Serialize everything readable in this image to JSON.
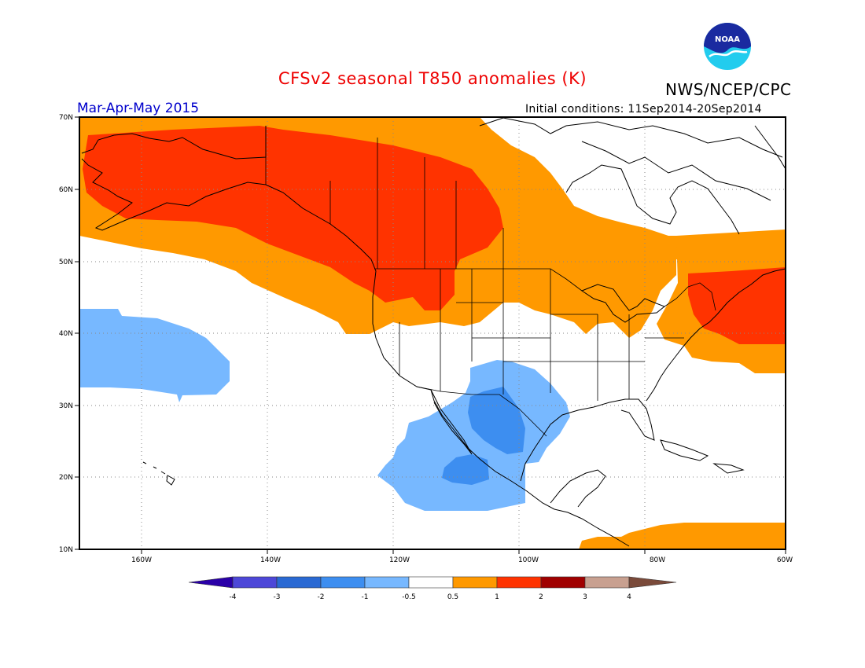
{
  "title": "CFSv2 seasonal T850 anomalies (K)",
  "agency": "NWS/NCEP/CPC",
  "logo_text": "NOAA",
  "season": "Mar-Apr-May 2015",
  "initial_conditions": "Initial conditions: 11Sep2014-20Sep2014",
  "map": {
    "projection": "cylindrical equidistant",
    "lon_range": [
      -172,
      -60
    ],
    "lat_range": [
      10,
      70
    ],
    "grid": true,
    "lon_ticks": [
      {
        "value": -160,
        "label": "160W"
      },
      {
        "value": -140,
        "label": "140W"
      },
      {
        "value": -120,
        "label": "120W"
      },
      {
        "value": -100,
        "label": "100W"
      },
      {
        "value": -80,
        "label": "80W"
      },
      {
        "value": -60,
        "label": "60W"
      }
    ],
    "lat_ticks": [
      {
        "value": 10,
        "label": "10N"
      },
      {
        "value": 20,
        "label": "20N"
      },
      {
        "value": 30,
        "label": "30N"
      },
      {
        "value": 40,
        "label": "40N"
      },
      {
        "value": 50,
        "label": "50N"
      },
      {
        "value": 60,
        "label": "60N"
      },
      {
        "value": 70,
        "label": "70N"
      }
    ]
  },
  "anomaly_regions": [
    {
      "level": "0.5 to 1",
      "color": "#ff9900",
      "description": "Alaska, western and central Canada, northern US"
    },
    {
      "level": "1 to 2",
      "color": "#ff3300",
      "description": "Alaska and western Canada core"
    },
    {
      "level": "0.5 to 1",
      "color": "#ff9900",
      "description": "Northeast US and Atlantic Canada"
    },
    {
      "level": "1 to 2",
      "color": "#ff3300",
      "description": "New England and Maritimes core"
    },
    {
      "level": "0.5 to 1",
      "color": "#ff9900",
      "description": "Central America and tropical Atlantic"
    },
    {
      "level": "-1 to -0.5",
      "color": "#77b8ff",
      "description": "Central North Pacific near Hawaii"
    },
    {
      "level": "-1 to -0.5",
      "color": "#77b8ff",
      "description": "Mexico, Texas and eastern tropical Pacific"
    },
    {
      "level": "-2 to -1",
      "color": "#3d8ef0",
      "description": "Northern Mexico and southwest Mexico cores"
    }
  ],
  "colorbar": {
    "labels": [
      "-4",
      "-3",
      "-2",
      "-1",
      "-0.5",
      "0.5",
      "1",
      "2",
      "3",
      "4"
    ],
    "colors": [
      "#2a00a8",
      "#4d47d8",
      "#2a69d3",
      "#3d8ef0",
      "#77b8ff",
      "#ffffff",
      "#ff9900",
      "#ff3300",
      "#a00000",
      "#c8a090",
      "#7a4a3a"
    ]
  }
}
